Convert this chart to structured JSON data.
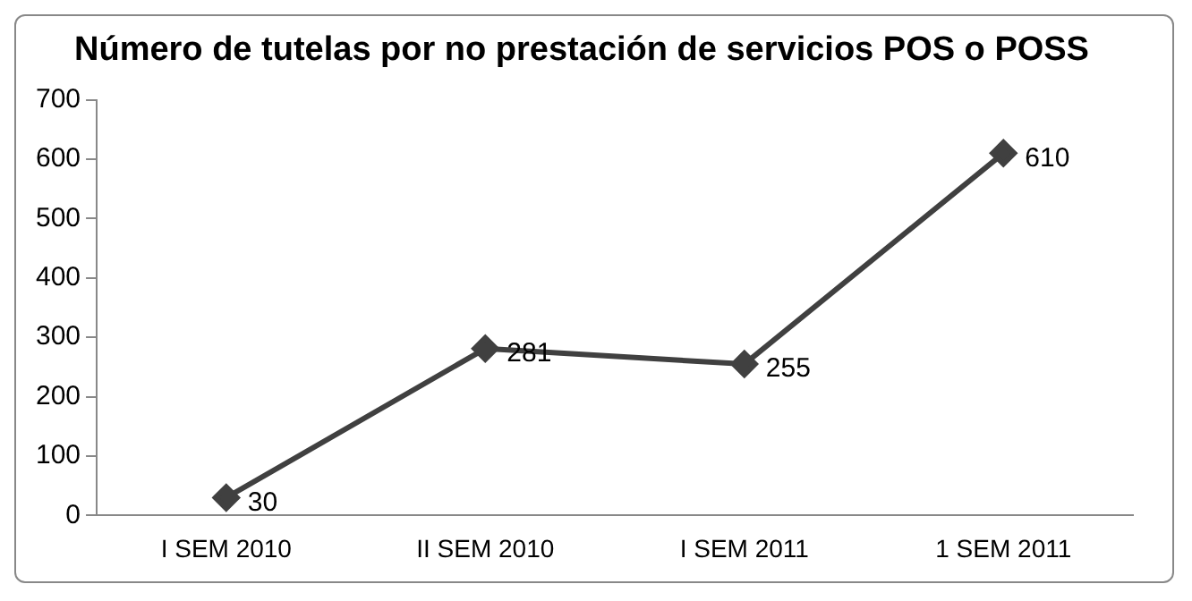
{
  "chart_data": {
    "type": "line",
    "title": "Número de tutelas por no prestación de servicios POS o POSS",
    "categories": [
      "I SEM 2010",
      "II SEM 2010",
      "I SEM 2011",
      "1 SEM 2011"
    ],
    "series": [
      {
        "color": "#404040",
        "values": [
          30,
          281,
          255,
          610
        ]
      }
    ],
    "ylim": [
      0,
      700
    ],
    "yticks": [
      0,
      100,
      200,
      300,
      400,
      500,
      600,
      700
    ],
    "grid": false,
    "legend": false,
    "marker": "diamond",
    "line_style": "solid",
    "data_labels": true
  }
}
